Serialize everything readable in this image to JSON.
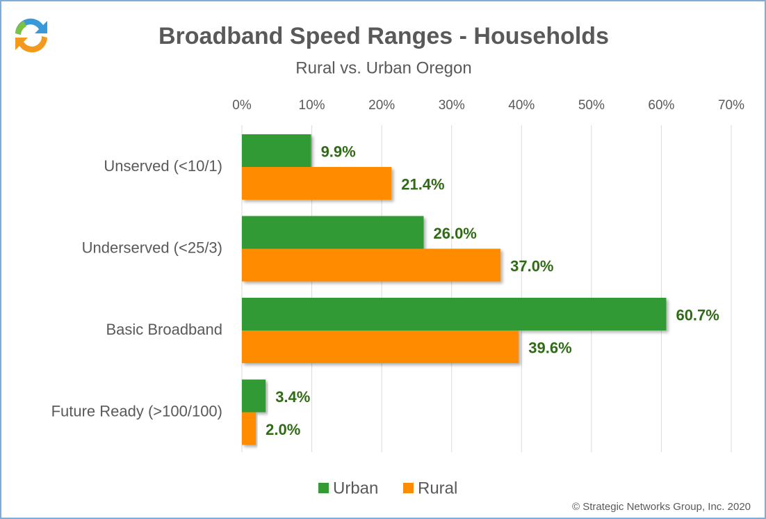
{
  "chart_data": {
    "type": "bar",
    "orientation": "horizontal",
    "title": "Broadband Speed Ranges - Households",
    "subtitle": "Rural vs. Urban Oregon",
    "copyright": "© Strategic Networks Group, Inc. 2020",
    "categories": [
      "Unserved (<10/1)",
      "Underserved (<25/3)",
      "Basic Broadband",
      "Future Ready (>100/100)"
    ],
    "series": [
      {
        "name": "Urban",
        "color": "#339a35",
        "values": [
          9.9,
          26.0,
          60.7,
          3.4
        ],
        "value_labels": [
          "9.9%",
          "26.0%",
          "60.7%",
          "3.4%"
        ]
      },
      {
        "name": "Rural",
        "color": "#ff8b00",
        "values": [
          21.4,
          37.0,
          39.6,
          2.0
        ],
        "value_labels": [
          "21.4%",
          "37.0%",
          "39.6%",
          "2.0%"
        ]
      }
    ],
    "xlim": [
      0,
      70
    ],
    "xticks": [
      {
        "value": 0,
        "label": "0%"
      },
      {
        "value": 10,
        "label": "10%"
      },
      {
        "value": 20,
        "label": "20%"
      },
      {
        "value": 30,
        "label": "30%"
      },
      {
        "value": 40,
        "label": "40%"
      },
      {
        "value": 50,
        "label": "50%"
      },
      {
        "value": 60,
        "label": "60%"
      },
      {
        "value": 70,
        "label": "70%"
      }
    ],
    "grid": true,
    "legend": "bottom"
  }
}
